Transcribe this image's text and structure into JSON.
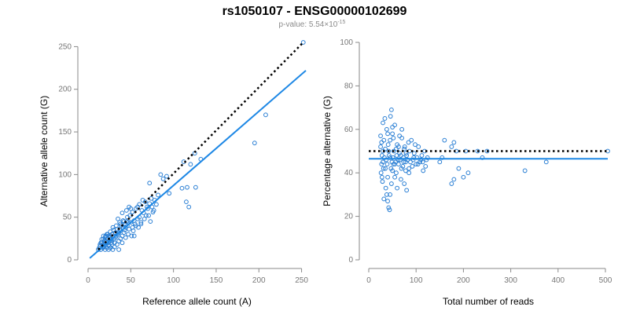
{
  "figure": {
    "title": "rs1050107 - ENSG00000102699",
    "subtitle_prefix": "p-value: 5.54×10",
    "subtitle_exponent": "-15"
  },
  "colors": {
    "points": "#2a7fd4",
    "fit_line": "#1e88e5",
    "reference_line": "#000000",
    "axes": "#8a8a8a"
  },
  "chart_data": [
    {
      "type": "scatter",
      "title": "",
      "xlabel": "Reference allele count (A)",
      "ylabel": "Alternative allele count (G)",
      "xlim": [
        0,
        255
      ],
      "ylim": [
        0,
        255
      ],
      "xticks": [
        0,
        50,
        100,
        150,
        200,
        250
      ],
      "yticks": [
        0,
        50,
        100,
        150,
        200,
        250
      ],
      "reference_line": {
        "style": "dotted",
        "color": "#000000",
        "from": [
          12,
          12
        ],
        "to": [
          252,
          255
        ]
      },
      "fit_line": {
        "style": "solid",
        "color": "#1e88e5",
        "from": [
          2,
          2
        ],
        "to": [
          255,
          222
        ]
      },
      "points": [
        [
          15,
          12
        ],
        [
          17,
          14
        ],
        [
          18,
          16
        ],
        [
          20,
          18
        ],
        [
          22,
          20
        ],
        [
          24,
          17
        ],
        [
          25,
          22
        ],
        [
          27,
          20
        ],
        [
          30,
          24
        ],
        [
          12,
          12
        ],
        [
          14,
          16
        ],
        [
          16,
          20
        ],
        [
          18,
          24
        ],
        [
          20,
          27
        ],
        [
          22,
          30
        ],
        [
          19,
          15
        ],
        [
          23,
          25
        ],
        [
          26,
          28
        ],
        [
          28,
          18
        ],
        [
          32,
          26
        ],
        [
          35,
          30
        ],
        [
          36,
          22
        ],
        [
          38,
          34
        ],
        [
          40,
          28
        ],
        [
          42,
          32
        ],
        [
          44,
          38
        ],
        [
          33,
          40
        ],
        [
          46,
          40
        ],
        [
          48,
          36
        ],
        [
          50,
          44
        ],
        [
          52,
          38
        ],
        [
          55,
          42
        ],
        [
          58,
          48
        ],
        [
          60,
          50
        ],
        [
          62,
          44
        ],
        [
          65,
          55
        ],
        [
          68,
          52
        ],
        [
          70,
          60
        ],
        [
          72,
          66
        ],
        [
          75,
          62
        ],
        [
          78,
          70
        ],
        [
          80,
          65
        ],
        [
          45,
          45
        ],
        [
          43,
          35
        ],
        [
          30,
          35
        ],
        [
          28,
          30
        ],
        [
          34,
          18
        ],
        [
          38,
          25
        ],
        [
          21,
          22
        ],
        [
          24,
          28
        ],
        [
          26,
          14
        ],
        [
          29,
          12
        ],
        [
          31,
          20
        ],
        [
          37,
          44
        ],
        [
          39,
          40
        ],
        [
          41,
          46
        ],
        [
          47,
          30
        ],
        [
          49,
          52
        ],
        [
          53,
          34
        ],
        [
          56,
          60
        ],
        [
          59,
          38
        ],
        [
          63,
          58
        ],
        [
          66,
          48
        ],
        [
          69,
          62
        ],
        [
          74,
          72
        ],
        [
          77,
          58
        ],
        [
          82,
          76
        ],
        [
          85,
          100
        ],
        [
          88,
          95
        ],
        [
          92,
          98
        ],
        [
          95,
          78
        ],
        [
          72,
          90
        ],
        [
          58,
          62
        ],
        [
          50,
          60
        ],
        [
          48,
          62
        ],
        [
          46,
          50
        ],
        [
          52,
          56
        ],
        [
          54,
          46
        ],
        [
          44,
          26
        ],
        [
          40,
          20
        ],
        [
          36,
          32
        ],
        [
          34,
          36
        ],
        [
          32,
          32
        ],
        [
          30,
          28
        ],
        [
          27,
          24
        ],
        [
          25,
          26
        ],
        [
          23,
          30
        ],
        [
          21,
          28
        ],
        [
          19,
          22
        ],
        [
          17,
          18
        ],
        [
          15,
          20
        ],
        [
          13,
          14
        ],
        [
          20,
          12
        ],
        [
          22,
          14
        ],
        [
          25,
          16
        ],
        [
          28,
          22
        ],
        [
          31,
          15
        ],
        [
          26,
          33
        ],
        [
          24,
          12
        ],
        [
          18,
          28
        ],
        [
          16,
          24
        ],
        [
          14,
          18
        ],
        [
          29,
          38
        ],
        [
          35,
          48
        ],
        [
          40,
          55
        ],
        [
          45,
          58
        ],
        [
          38,
          42
        ],
        [
          42,
          45
        ],
        [
          60,
          65
        ],
        [
          64,
          70
        ],
        [
          67,
          68
        ],
        [
          71,
          52
        ],
        [
          76,
          56
        ],
        [
          62,
          42
        ],
        [
          56,
          40
        ],
        [
          51,
          28
        ],
        [
          47,
          44
        ],
        [
          44,
          42
        ],
        [
          41,
          38
        ],
        [
          37,
          36
        ],
        [
          112,
          115
        ],
        [
          115,
          68
        ],
        [
          118,
          62
        ],
        [
          116,
          85
        ],
        [
          126,
          85
        ],
        [
          120,
          112
        ],
        [
          125,
          125
        ],
        [
          132,
          118
        ],
        [
          195,
          137
        ],
        [
          208,
          170
        ],
        [
          252,
          255
        ],
        [
          110,
          84
        ],
        [
          73,
          45
        ],
        [
          54,
          28
        ],
        [
          36,
          12
        ],
        [
          33,
          28
        ]
      ]
    },
    {
      "type": "scatter",
      "title": "",
      "xlabel": "Total number of reads",
      "ylabel": "Percentage alternative (G)",
      "xlim": [
        0,
        505
      ],
      "ylim": [
        0,
        100
      ],
      "xticks": [
        0,
        100,
        200,
        300,
        400,
        500
      ],
      "yticks": [
        0,
        20,
        40,
        60,
        80,
        100
      ],
      "reference_line": {
        "style": "dotted",
        "color": "#000000",
        "y": 50
      },
      "fit_line": {
        "style": "solid",
        "color": "#1e88e5",
        "y": 46.5
      },
      "points": [
        [
          25,
          52
        ],
        [
          28,
          48
        ],
        [
          30,
          45
        ],
        [
          32,
          55
        ],
        [
          35,
          42
        ],
        [
          38,
          60
        ],
        [
          40,
          38
        ],
        [
          42,
          50
        ],
        [
          45,
          47
        ],
        [
          48,
          35
        ],
        [
          50,
          58
        ],
        [
          52,
          44
        ],
        [
          55,
          62
        ],
        [
          58,
          40
        ],
        [
          60,
          53
        ],
        [
          62,
          46
        ],
        [
          65,
          49
        ],
        [
          68,
          37
        ],
        [
          70,
          56
        ],
        [
          72,
          43
        ],
        [
          75,
          51
        ],
        [
          78,
          45
        ],
        [
          80,
          48
        ],
        [
          85,
          42
        ],
        [
          90,
          55
        ],
        [
          95,
          47
        ],
        [
          100,
          44
        ],
        [
          105,
          52
        ],
        [
          110,
          46
        ],
        [
          115,
          41
        ],
        [
          30,
          63
        ],
        [
          34,
          65
        ],
        [
          38,
          30
        ],
        [
          40,
          27
        ],
        [
          42,
          24
        ],
        [
          44,
          23
        ],
        [
          36,
          33
        ],
        [
          46,
          66
        ],
        [
          48,
          69
        ],
        [
          50,
          61
        ],
        [
          26,
          40
        ],
        [
          28,
          38
        ],
        [
          30,
          50
        ],
        [
          33,
          47
        ],
        [
          27,
          44
        ],
        [
          29,
          36
        ],
        [
          31,
          42
        ],
        [
          35,
          51
        ],
        [
          37,
          46
        ],
        [
          39,
          44
        ],
        [
          41,
          53
        ],
        [
          43,
          48
        ],
        [
          47,
          42
        ],
        [
          49,
          45
        ],
        [
          51,
          47
        ],
        [
          53,
          50
        ],
        [
          57,
          45
        ],
        [
          59,
          48
        ],
        [
          63,
          44
        ],
        [
          66,
          46
        ],
        [
          69,
          42
        ],
        [
          73,
          47
        ],
        [
          76,
          52
        ],
        [
          79,
          49
        ],
        [
          82,
          46
        ],
        [
          86,
          50
        ],
        [
          88,
          45
        ],
        [
          92,
          43
        ],
        [
          96,
          49
        ],
        [
          98,
          53
        ],
        [
          102,
          47
        ],
        [
          108,
          45
        ],
        [
          112,
          48
        ],
        [
          118,
          50
        ],
        [
          120,
          43
        ],
        [
          122,
          46
        ],
        [
          65,
          57
        ],
        [
          70,
          60
        ],
        [
          75,
          35
        ],
        [
          80,
          32
        ],
        [
          85,
          40
        ],
        [
          60,
          33
        ],
        [
          55,
          38
        ],
        [
          45,
          30
        ],
        [
          32,
          28
        ],
        [
          40,
          58
        ],
        [
          52,
          56
        ],
        [
          58,
          51
        ],
        [
          63,
          52
        ],
        [
          68,
          48
        ],
        [
          74,
          45
        ],
        [
          78,
          41
        ],
        [
          84,
          54
        ],
        [
          94,
          46
        ],
        [
          104,
          44
        ],
        [
          114,
          45
        ],
        [
          124,
          47
        ],
        [
          150,
          45
        ],
        [
          155,
          47
        ],
        [
          160,
          55
        ],
        [
          175,
          52
        ],
        [
          180,
          54
        ],
        [
          185,
          50
        ],
        [
          190,
          42
        ],
        [
          200,
          38
        ],
        [
          205,
          50
        ],
        [
          210,
          40
        ],
        [
          230,
          50
        ],
        [
          240,
          47
        ],
        [
          250,
          50
        ],
        [
          330,
          41
        ],
        [
          375,
          45
        ],
        [
          505,
          50
        ],
        [
          175,
          35
        ],
        [
          180,
          37
        ],
        [
          25,
          57
        ],
        [
          27,
          54
        ],
        [
          45,
          55
        ],
        [
          50,
          41
        ],
        [
          55,
          44
        ]
      ]
    }
  ]
}
